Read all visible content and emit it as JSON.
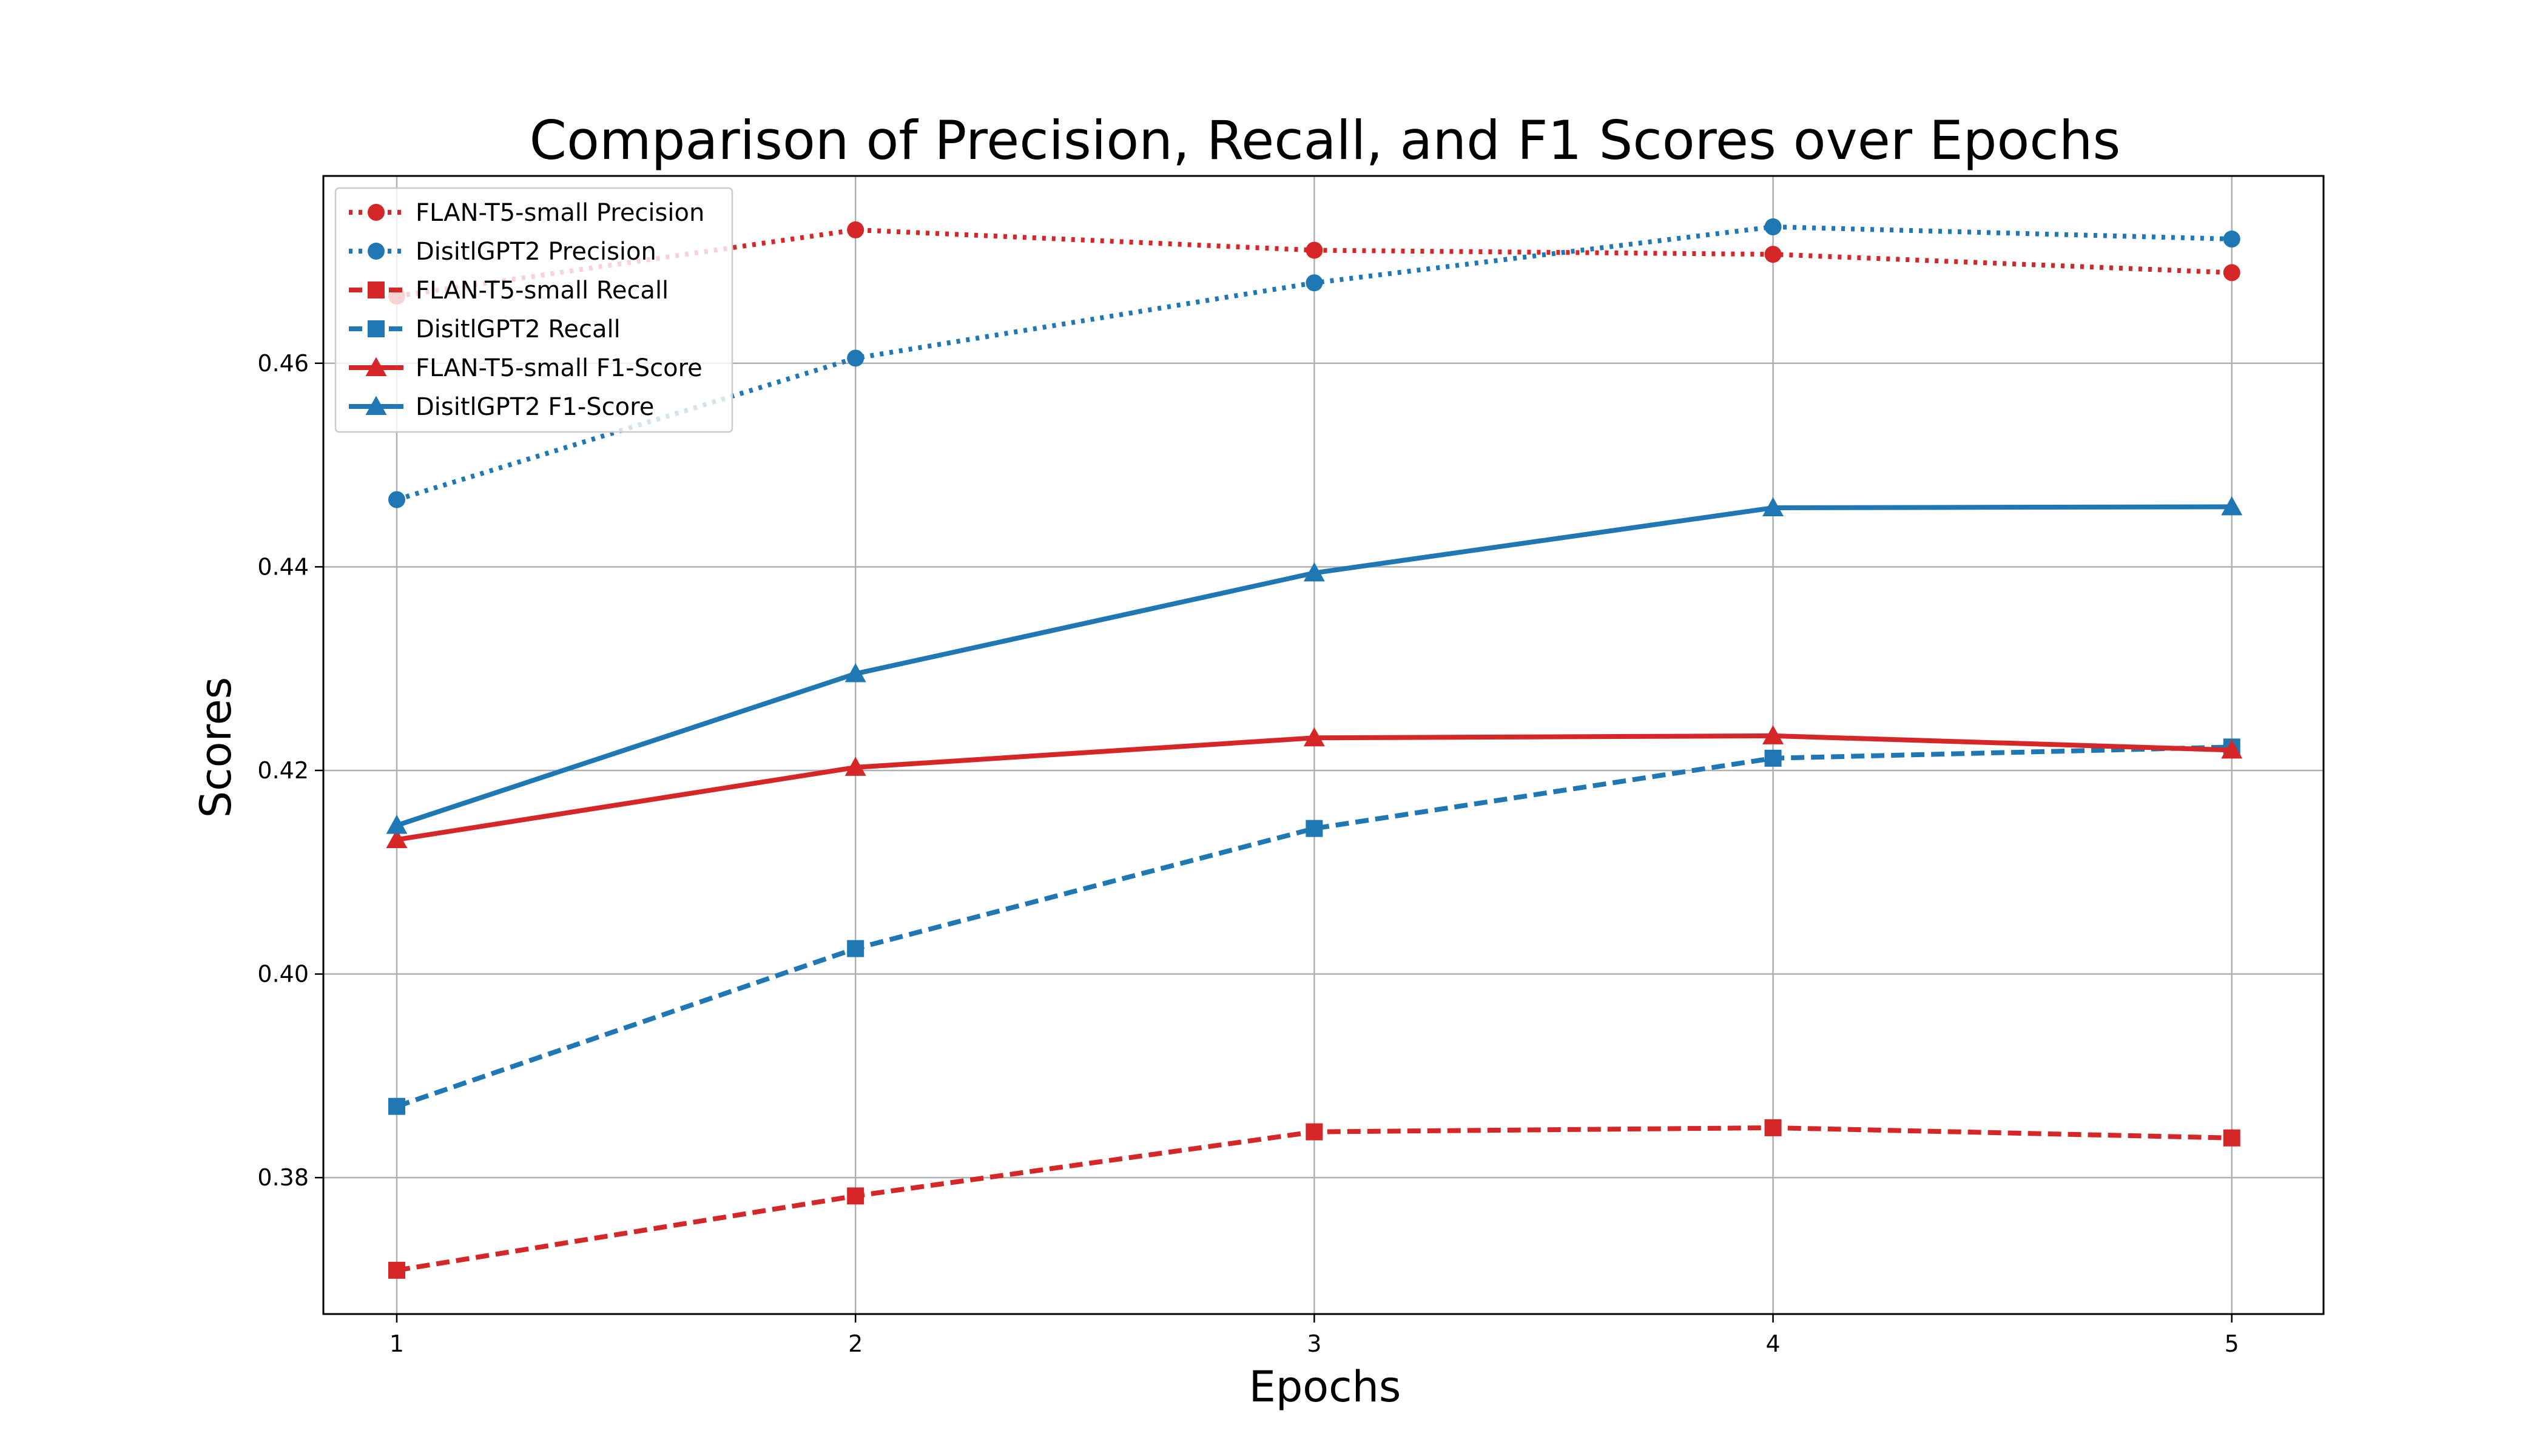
{
  "chart_data": {
    "type": "line",
    "title": "Comparison of Precision, Recall, and F1 Scores over Epochs",
    "xlabel": "Epochs",
    "ylabel": "Scores",
    "x": [
      1,
      2,
      3,
      4,
      5
    ],
    "x_ticks": [
      "1",
      "2",
      "3",
      "4",
      "5"
    ],
    "xlim": [
      0.84,
      5.2
    ],
    "ylim": [
      0.3666,
      0.4784
    ],
    "y_ticks": [
      "0.38",
      "0.40",
      "0.42",
      "0.44",
      "0.46"
    ],
    "y_tick_values": [
      0.38,
      0.4,
      0.42,
      0.44,
      0.46
    ],
    "grid": true,
    "legend_location": "upper left",
    "series": [
      {
        "name": "FLAN-T5-small Precision",
        "values": [
          0.4666,
          0.4731,
          0.4711,
          0.4707,
          0.4689
        ],
        "color": "#d62728",
        "line_style": "dotted",
        "marker": "circle"
      },
      {
        "name": "DisitlGPT2 Precision",
        "values": [
          0.4466,
          0.4605,
          0.4679,
          0.4734,
          0.4722
        ],
        "color": "#1f77b4",
        "line_style": "dotted",
        "marker": "circle"
      },
      {
        "name": "FLAN-T5-small Recall",
        "values": [
          0.3709,
          0.3782,
          0.3845,
          0.3849,
          0.3839
        ],
        "color": "#d62728",
        "line_style": "dashed",
        "marker": "square"
      },
      {
        "name": "DisitlGPT2 Recall",
        "values": [
          0.387,
          0.4025,
          0.4143,
          0.4212,
          0.4223
        ],
        "color": "#1f77b4",
        "line_style": "dashed",
        "marker": "square"
      },
      {
        "name": "FLAN-T5-small F1-Score",
        "values": [
          0.4132,
          0.4203,
          0.4232,
          0.4234,
          0.422
        ],
        "color": "#d62728",
        "line_style": "solid",
        "marker": "triangle"
      },
      {
        "name": "DisitlGPT2 F1-Score",
        "values": [
          0.4146,
          0.4295,
          0.4394,
          0.4458,
          0.4459
        ],
        "color": "#1f77b4",
        "line_style": "solid",
        "marker": "triangle"
      }
    ]
  }
}
